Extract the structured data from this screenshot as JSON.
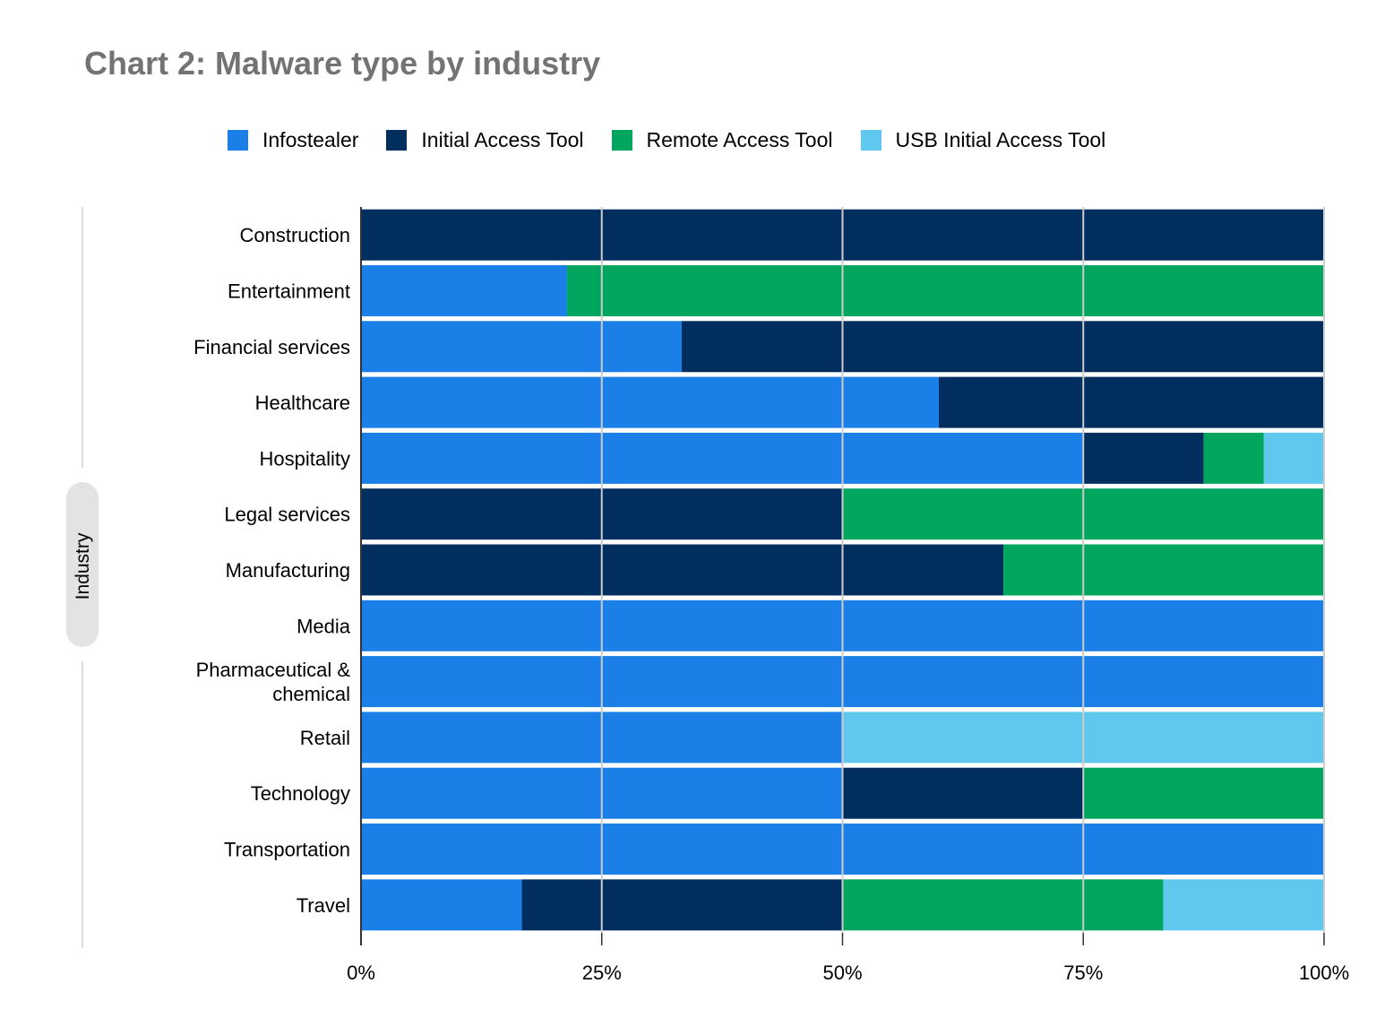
{
  "chart_data": {
    "type": "bar",
    "orientation": "horizontal",
    "stacked": "percent",
    "title": "Chart 2: Malware type by industry",
    "ylabel": "Industry",
    "xlabel": "",
    "xlim": [
      0,
      100
    ],
    "x_ticks": [
      "0%",
      "25%",
      "50%",
      "75%",
      "100%"
    ],
    "grid": true,
    "legend_position": "top",
    "categories": [
      "Construction",
      "Entertainment",
      "Financial services",
      "Healthcare",
      "Hospitality",
      "Legal services",
      "Manufacturing",
      "Media",
      "Pharmaceutical & chemical",
      "Retail",
      "Technology",
      "Transportation",
      "Travel"
    ],
    "category_lines": [
      [
        "Construction"
      ],
      [
        "Entertainment"
      ],
      [
        "Financial services"
      ],
      [
        "Healthcare"
      ],
      [
        "Hospitality"
      ],
      [
        "Legal services"
      ],
      [
        "Manufacturing"
      ],
      [
        "Media"
      ],
      [
        "Pharmaceutical &",
        "chemical"
      ],
      [
        "Retail"
      ],
      [
        "Technology"
      ],
      [
        "Transportation"
      ],
      [
        "Travel"
      ]
    ],
    "series": [
      {
        "name": "Infostealer",
        "color": "#1a7fe6",
        "values": [
          0,
          21.4,
          33.3,
          60,
          75,
          0,
          0,
          100,
          100,
          50,
          50,
          100,
          16.7
        ]
      },
      {
        "name": "Initial Access Tool",
        "color": "#002f5f",
        "values": [
          100,
          0,
          66.7,
          40,
          12.5,
          50,
          66.7,
          0,
          0,
          0,
          25,
          0,
          33.3
        ]
      },
      {
        "name": "Remote Access Tool",
        "color": "#00a65d",
        "values": [
          0,
          78.6,
          0,
          0,
          6.25,
          50,
          33.3,
          0,
          0,
          0,
          25,
          0,
          33.3
        ]
      },
      {
        "name": "USB Initial Access Tool",
        "color": "#60c8ef",
        "values": [
          0,
          0,
          0,
          0,
          6.25,
          0,
          0,
          0,
          0,
          50,
          0,
          0,
          16.7
        ]
      }
    ]
  }
}
